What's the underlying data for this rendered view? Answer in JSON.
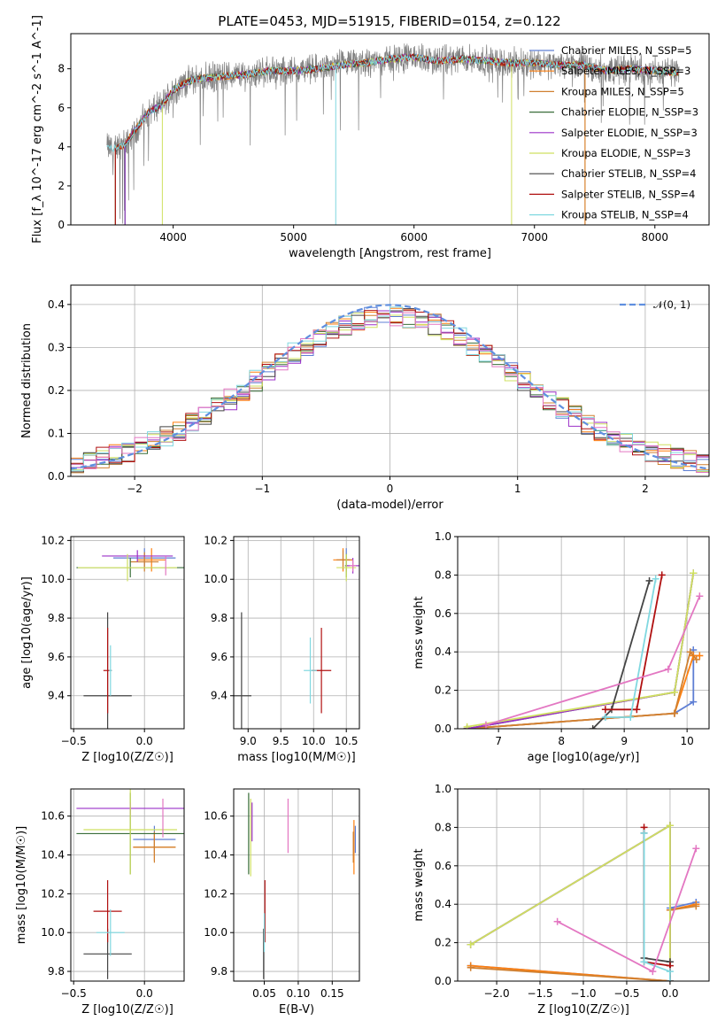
{
  "title": "PLATE=0453, MJD=51915, FIBERID=0154, z=0.122",
  "colors": {
    "Chabrier MILES": "#5f7fd4",
    "Salpeter MILES": "#ff7f0e",
    "Kroupa MILES": "#d08030",
    "Chabrier ELODIE": "#3a6e3a",
    "Salpeter ELODIE": "#9b30c8",
    "Kroupa ELODIE": "#cfe060",
    "Chabrier STELIB": "#444444",
    "Salpeter STELIB": "#b01010",
    "Kroupa STELIB": "#80d8e0",
    "extra_pink": "#e377c2",
    "extra_olive": "#bcbd22",
    "gauss": "#5f8fdf"
  },
  "chart_data": [
    {
      "id": "spectrum",
      "type": "line",
      "title": "PLATE=0453, MJD=51915, FIBERID=0154, z=0.122",
      "xlabel": "wavelength [Angstrom, rest frame]",
      "ylabel": "Flux [f_λ 10^-17 erg cm^-2 s^-1 A^-1]",
      "xlim": [
        3150,
        8450
      ],
      "ylim": [
        0,
        9.8
      ],
      "xticks": [
        4000,
        5000,
        6000,
        7000,
        8000
      ],
      "yticks": [
        0,
        2,
        4,
        6,
        8
      ],
      "legend_position": "right",
      "legend": [
        "Chabrier MILES, N_SSP=5",
        "Salpeter MILES, N_SSP=3",
        "Kroupa MILES, N_SSP=5",
        "Chabrier ELODIE, N_SSP=3",
        "Salpeter ELODIE, N_SSP=3",
        "Kroupa ELODIE, N_SSP=3",
        "Chabrier STELIB, N_SSP=4",
        "Salpeter STELIB, N_SSP=4",
        "Kroupa STELIB, N_SSP=4"
      ],
      "continuum": {
        "x": [
          3450,
          3500,
          3600,
          3700,
          3800,
          3900,
          4000,
          4100,
          4200,
          4400,
          4600,
          4800,
          5000,
          5200,
          5400,
          5600,
          5800,
          6000,
          6200,
          6400,
          6600,
          6800,
          7000,
          7200,
          7400,
          7600,
          7800,
          8000,
          8200
        ],
        "y": [
          4.0,
          3.9,
          4.1,
          5.0,
          5.8,
          6.1,
          6.9,
          7.3,
          7.5,
          7.6,
          7.7,
          7.9,
          7.9,
          8.0,
          8.2,
          8.3,
          8.5,
          8.6,
          8.4,
          8.5,
          8.4,
          8.3,
          8.3,
          8.2,
          8.2,
          7.9,
          8.0,
          7.9,
          7.8
        ]
      }
    },
    {
      "id": "residuals",
      "type": "line",
      "xlabel": "(data-model)/error",
      "ylabel": "Normed distribution",
      "xlim": [
        -2.5,
        2.5
      ],
      "ylim": [
        0,
        0.445
      ],
      "xticks": [
        -2,
        -1,
        0,
        1,
        2
      ],
      "yticks": [
        0.0,
        0.1,
        0.2,
        0.3,
        0.4
      ],
      "legend": [
        "𝒩(0, 1)"
      ],
      "legend_position": "top-right",
      "bin_width": 0.1
    },
    {
      "id": "age_vs_Z",
      "type": "scatter",
      "xlabel": "Z [log10(Z/Z☉)]",
      "ylabel": "age [log10(age/yr)]",
      "xlim": [
        -0.52,
        0.28
      ],
      "ylim": [
        9.23,
        10.22
      ],
      "xticks": [
        -0.5,
        0.0
      ],
      "yticks": [
        9.4,
        9.6,
        9.8,
        10.0,
        10.2
      ],
      "points": [
        {
          "model": "Chabrier MILES",
          "x": 0.0,
          "y": 10.11,
          "ex": 0.22,
          "ey": 0.05
        },
        {
          "model": "Salpeter MILES",
          "x": 0.05,
          "y": 10.1,
          "ex": 0.1,
          "ey": 0.06
        },
        {
          "model": "Kroupa MILES",
          "x": 0.0,
          "y": 10.09,
          "ex": 0.1,
          "ey": 0.05
        },
        {
          "model": "Chabrier ELODIE",
          "x": -0.1,
          "y": 10.06,
          "ex": 0.38,
          "ey": 0.05
        },
        {
          "model": "Salpeter ELODIE",
          "x": -0.05,
          "y": 10.12,
          "ex": 0.25,
          "ey": 0.03
        },
        {
          "model": "Kroupa ELODIE",
          "x": -0.12,
          "y": 10.06,
          "ex": 0.35,
          "ey": 0.07
        },
        {
          "model": "Chabrier STELIB",
          "x": -0.26,
          "y": 9.4,
          "ex": 0.17,
          "ey": 0.43
        },
        {
          "model": "Salpeter STELIB",
          "x": -0.26,
          "y": 9.53,
          "ex": 0.03,
          "ey": 0.22
        },
        {
          "model": "Kroupa STELIB",
          "x": -0.24,
          "y": 9.53,
          "ex": 0.01,
          "ey": 0.13
        },
        {
          "model": "extra_pink",
          "x": 0.15,
          "y": 10.07,
          "ex": 0.0,
          "ey": 0.05
        }
      ]
    },
    {
      "id": "age_vs_mass",
      "type": "scatter",
      "xlabel": "mass [log10(M/M☉)]",
      "ylabel": "",
      "xlim": [
        8.78,
        10.7
      ],
      "ylim": [
        9.23,
        10.22
      ],
      "xticks": [
        9.0,
        9.5,
        10.0,
        10.5
      ],
      "yticks": [
        9.4,
        9.6,
        9.8,
        10.0,
        10.2
      ],
      "points": [
        {
          "model": "Chabrier MILES",
          "x": 10.5,
          "y": 10.1,
          "ex": 0.1,
          "ey": 0.06
        },
        {
          "model": "Salpeter MILES",
          "x": 10.45,
          "y": 10.1,
          "ex": 0.15,
          "ey": 0.06
        },
        {
          "model": "Kroupa MILES",
          "x": 10.45,
          "y": 10.1,
          "ex": 0.1,
          "ey": 0.05
        },
        {
          "model": "Chabrier ELODIE",
          "x": 10.5,
          "y": 10.07,
          "ex": 0.02,
          "ey": 0.06
        },
        {
          "model": "Salpeter ELODIE",
          "x": 10.6,
          "y": 10.07,
          "ex": 0.1,
          "ey": 0.04
        },
        {
          "model": "Kroupa ELODIE",
          "x": 10.5,
          "y": 10.06,
          "ex": 0.15,
          "ey": 0.07
        },
        {
          "model": "Chabrier STELIB",
          "x": 8.9,
          "y": 9.4,
          "ex": 0.15,
          "ey": 0.43
        },
        {
          "model": "Salpeter STELIB",
          "x": 10.12,
          "y": 9.53,
          "ex": 0.15,
          "ey": 0.22
        },
        {
          "model": "Kroupa STELIB",
          "x": 9.95,
          "y": 9.53,
          "ex": 0.1,
          "ey": 0.17
        },
        {
          "model": "extra_pink",
          "x": 10.6,
          "y": 10.07,
          "ex": 0.05,
          "ey": 0.03
        }
      ]
    },
    {
      "id": "weight_vs_age",
      "type": "line",
      "xlabel": "age [log10(age/yr)]",
      "ylabel": "mass weight",
      "xlim": [
        6.35,
        10.35
      ],
      "ylim": [
        0,
        1.0
      ],
      "xticks": [
        7,
        8,
        9,
        10
      ],
      "yticks": [
        0.0,
        0.2,
        0.4,
        0.6,
        0.8,
        1.0
      ],
      "series": [
        {
          "model": "Chabrier MILES",
          "x": [
            6.5,
            9.8,
            10.1,
            10.1
          ],
          "y": [
            0.0,
            0.08,
            0.14,
            0.41
          ]
        },
        {
          "model": "Salpeter MILES",
          "x": [
            6.5,
            9.8,
            10.1,
            10.2
          ],
          "y": [
            0.0,
            0.08,
            0.38,
            0.38
          ]
        },
        {
          "model": "Kroupa MILES",
          "x": [
            6.5,
            9.8,
            10.05,
            10.15
          ],
          "y": [
            0.0,
            0.08,
            0.4,
            0.36
          ]
        },
        {
          "model": "Chabrier ELODIE",
          "x": [
            6.5,
            9.8,
            10.1
          ],
          "y": [
            0.0,
            0.19,
            0.81
          ]
        },
        {
          "model": "Salpeter ELODIE",
          "x": [
            6.5,
            9.8,
            10.1
          ],
          "y": [
            0.0,
            0.19,
            0.81
          ]
        },
        {
          "model": "Kroupa ELODIE",
          "x": [
            6.5,
            9.8,
            10.1
          ],
          "y": [
            0.01,
            0.19,
            0.81
          ]
        },
        {
          "model": "Chabrier STELIB",
          "x": [
            8.5,
            8.8,
            9.4
          ],
          "y": [
            0.0,
            0.1,
            0.77
          ]
        },
        {
          "model": "Salpeter STELIB",
          "x": [
            8.7,
            9.2,
            9.6
          ],
          "y": [
            0.1,
            0.1,
            0.8
          ]
        },
        {
          "model": "Kroupa STELIB",
          "x": [
            8.7,
            9.1,
            9.5
          ],
          "y": [
            0.06,
            0.06,
            0.78
          ]
        },
        {
          "model": "extra_pink",
          "x": [
            6.8,
            9.7,
            10.2
          ],
          "y": [
            0.02,
            0.31,
            0.69
          ]
        }
      ]
    },
    {
      "id": "mass_vs_Z",
      "type": "scatter",
      "xlabel": "Z [log10(Z/Z☉)]",
      "ylabel": "mass [log10(M/M☉)]",
      "xlim": [
        -0.52,
        0.28
      ],
      "ylim": [
        9.75,
        10.74
      ],
      "xticks": [
        -0.5,
        0.0
      ],
      "yticks": [
        9.8,
        10.0,
        10.2,
        10.4,
        10.6
      ],
      "points": [
        {
          "model": "Chabrier MILES",
          "x": 0.07,
          "y": 10.48,
          "ex": 0.15,
          "ey": 0.07
        },
        {
          "model": "Salpeter MILES",
          "x": 0.07,
          "y": 10.44,
          "ex": 0.15,
          "ey": 0.07
        },
        {
          "model": "Kroupa MILES",
          "x": 0.07,
          "y": 10.44,
          "ex": 0.15,
          "ey": 0.08
        },
        {
          "model": "Chabrier ELODIE",
          "x": -0.1,
          "y": 10.51,
          "ex": 0.38,
          "ey": 0.21
        },
        {
          "model": "Salpeter ELODIE",
          "x": -0.1,
          "y": 10.64,
          "ex": 0.38,
          "ey": 0.03
        },
        {
          "model": "Kroupa ELODIE",
          "x": -0.1,
          "y": 10.53,
          "ex": 0.33,
          "ey": 0.23
        },
        {
          "model": "Chabrier STELIB",
          "x": -0.26,
          "y": 9.89,
          "ex": 0.17,
          "ey": 0.13
        },
        {
          "model": "Salpeter STELIB",
          "x": -0.26,
          "y": 10.11,
          "ex": 0.1,
          "ey": 0.16
        },
        {
          "model": "Kroupa STELIB",
          "x": -0.24,
          "y": 10.0,
          "ex": 0.1,
          "ey": 0.12
        },
        {
          "model": "extra_pink",
          "x": 0.13,
          "y": 10.59,
          "ex": 0.0,
          "ey": 0.1
        }
      ]
    },
    {
      "id": "mass_vs_EBV",
      "type": "scatter",
      "xlabel": "E(B-V)",
      "ylabel": "",
      "xlim": [
        0.005,
        0.19
      ],
      "ylim": [
        9.75,
        10.74
      ],
      "xticks": [
        0.05,
        0.1,
        0.15
      ],
      "yticks": [
        9.8,
        10.0,
        10.2,
        10.4,
        10.6
      ],
      "points": [
        {
          "model": "Chabrier MILES",
          "x": 0.184,
          "y": 10.48,
          "ex": 0.0,
          "ey": 0.07
        },
        {
          "model": "Salpeter MILES",
          "x": 0.182,
          "y": 10.44,
          "ex": 0.0,
          "ey": 0.14
        },
        {
          "model": "Kroupa MILES",
          "x": 0.181,
          "y": 10.44,
          "ex": 0.0,
          "ey": 0.08
        },
        {
          "model": "Chabrier ELODIE",
          "x": 0.027,
          "y": 10.51,
          "ex": 0.0,
          "ey": 0.21
        },
        {
          "model": "Salpeter ELODIE",
          "x": 0.032,
          "y": 10.57,
          "ex": 0.0,
          "ey": 0.1
        },
        {
          "model": "Kroupa ELODIE",
          "x": 0.03,
          "y": 10.49,
          "ex": 0.0,
          "ey": 0.2
        },
        {
          "model": "Chabrier STELIB",
          "x": 0.049,
          "y": 9.89,
          "ex": 0.0,
          "ey": 0.13
        },
        {
          "model": "Salpeter STELIB",
          "x": 0.051,
          "y": 10.11,
          "ex": 0.0,
          "ey": 0.16
        },
        {
          "model": "Kroupa STELIB",
          "x": 0.05,
          "y": 10.0,
          "ex": 0.0,
          "ey": 0.1
        },
        {
          "model": "extra_pink",
          "x": 0.085,
          "y": 10.55,
          "ex": 0.0,
          "ey": 0.14
        }
      ]
    },
    {
      "id": "weight_vs_Z",
      "type": "line",
      "xlabel": "Z [log10(Z/Z☉)]",
      "ylabel": "mass weight",
      "xlim": [
        -2.45,
        0.45
      ],
      "ylim": [
        0,
        1.0
      ],
      "xticks": [
        -2.0,
        -1.5,
        -1.0,
        -0.5,
        0.0
      ],
      "yticks": [
        0.0,
        0.2,
        0.4,
        0.6,
        0.8,
        1.0
      ],
      "series": [
        {
          "model": "Chabrier MILES",
          "x": [
            -2.3,
            0.0,
            0.0,
            0.3
          ],
          "y": [
            0.08,
            0.0,
            0.38,
            0.41
          ]
        },
        {
          "model": "Salpeter MILES",
          "x": [
            -2.3,
            0.0,
            0.0,
            0.3
          ],
          "y": [
            0.08,
            0.0,
            0.37,
            0.4
          ]
        },
        {
          "model": "Kroupa MILES",
          "x": [
            -2.3,
            0.0,
            0.0,
            0.3
          ],
          "y": [
            0.07,
            0.0,
            0.37,
            0.39
          ]
        },
        {
          "model": "Chabrier ELODIE",
          "x": [
            -2.3,
            0.0,
            0.0
          ],
          "y": [
            0.19,
            0.81,
            0.0
          ]
        },
        {
          "model": "Salpeter ELODIE",
          "x": [
            -2.3,
            0.0,
            0.0
          ],
          "y": [
            0.19,
            0.81,
            0.0
          ]
        },
        {
          "model": "Kroupa ELODIE",
          "x": [
            -2.3,
            0.0,
            0.0
          ],
          "y": [
            0.19,
            0.81,
            0.0
          ]
        },
        {
          "model": "Chabrier STELIB",
          "x": [
            -0.3,
            -0.3,
            0.0,
            0.0
          ],
          "y": [
            0.77,
            0.12,
            0.1,
            0.0
          ]
        },
        {
          "model": "Salpeter STELIB",
          "x": [
            -0.3,
            -0.3,
            0.0,
            0.0
          ],
          "y": [
            0.8,
            0.1,
            0.08,
            0.0
          ]
        },
        {
          "model": "Kroupa STELIB",
          "x": [
            -0.3,
            -0.3,
            0.0,
            0.0
          ],
          "y": [
            0.77,
            0.1,
            0.05,
            0.0
          ]
        },
        {
          "model": "extra_pink",
          "x": [
            -1.3,
            -0.2,
            0.3
          ],
          "y": [
            0.31,
            0.05,
            0.69
          ]
        }
      ]
    }
  ]
}
